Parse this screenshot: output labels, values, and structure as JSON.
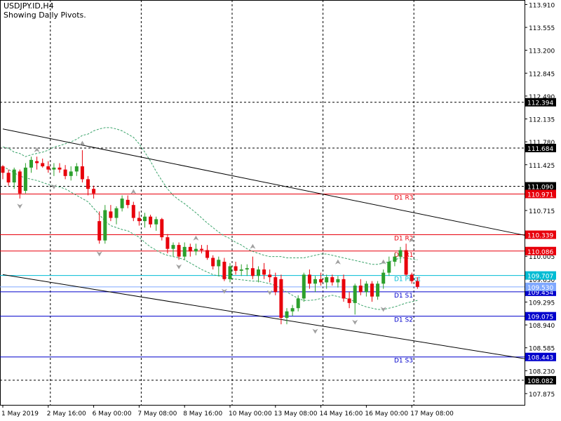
{
  "header": {
    "symbol": "USDJPY.ID,H4",
    "subtitle": "Showing Daily Pivots."
  },
  "colors": {
    "background": "#ffffff",
    "bull": "#2ca02c",
    "bear": "#e8000b",
    "resistance_line": "#e8000b",
    "support_line": "#0000cc",
    "pivot_line": "#00bcd4",
    "bid_line": "#7fa8ff",
    "envelope": "#3aa36a",
    "grid": "#000000",
    "fractal": "#a0a0a0",
    "trendline": "#000000"
  },
  "chart_data": {
    "type": "candlestick",
    "ylim": [
      107.7,
      113.98
    ],
    "yticks": [
      "113.910",
      "113.555",
      "113.200",
      "112.845",
      "112.490",
      "112.135",
      "111.780",
      "111.425",
      "111.070",
      "110.715",
      "110.360",
      "110.005",
      "109.650",
      "109.295",
      "108.940",
      "108.585",
      "108.230",
      "107.875"
    ],
    "xticks": [
      "1 May 2019",
      "2 May 16:00",
      "6 May 00:00",
      "7 May 08:00",
      "8 May 16:00",
      "10 May 00:00",
      "13 May 08:00",
      "14 May 16:00",
      "16 May 00:00",
      "17 May 08:00"
    ],
    "xtick_index": [
      0,
      8,
      16,
      24,
      32,
      40,
      48,
      56,
      64,
      72
    ],
    "grid_y": [
      112.394,
      111.684,
      111.09,
      108.082
    ],
    "pivots": [
      {
        "label": "D1 R3",
        "value": 110.971,
        "tag": "110.971",
        "kind": "resistance"
      },
      {
        "label": "D1 R2",
        "value": 110.339,
        "tag": "110.339",
        "kind": "resistance"
      },
      {
        "label": "D1 R1",
        "value": 110.086,
        "tag": "110.086",
        "kind": "resistance"
      },
      {
        "label": "D1 Pivot",
        "value": 109.707,
        "tag": "109.707",
        "kind": "pivot"
      },
      {
        "label": "D1 S1",
        "value": 109.454,
        "tag": "109.454",
        "kind": "support"
      },
      {
        "label": "D1 S2",
        "value": 109.075,
        "tag": "109.075",
        "kind": "support"
      },
      {
        "label": "D1 S3",
        "value": 108.443,
        "tag": "108.443",
        "kind": "support"
      }
    ],
    "price_tags_grid": [
      {
        "value": 112.394,
        "tag": "112.394"
      },
      {
        "value": 111.684,
        "tag": "111.684"
      },
      {
        "value": 111.09,
        "tag": "111.090"
      },
      {
        "value": 108.082,
        "tag": "108.082"
      }
    ],
    "bid": {
      "value": 109.53,
      "tag": "109.530"
    },
    "trendlines": [
      {
        "x1": 0,
        "y1": 111.98,
        "x2": 93,
        "y2": 110.31
      },
      {
        "x1": 0,
        "y1": 109.72,
        "x2": 93,
        "y2": 108.4
      }
    ],
    "candles": [
      [
        111.4,
        111.42,
        111.2,
        111.3
      ],
      [
        111.3,
        111.35,
        111.1,
        111.15
      ],
      [
        111.15,
        111.38,
        111.05,
        111.35
      ],
      [
        111.32,
        111.35,
        110.9,
        110.98
      ],
      [
        111.02,
        111.45,
        110.98,
        111.38
      ],
      [
        111.38,
        111.55,
        111.3,
        111.5
      ],
      [
        111.48,
        111.55,
        111.35,
        111.45
      ],
      [
        111.45,
        111.52,
        111.38,
        111.4
      ],
      [
        111.4,
        111.48,
        111.3,
        111.35
      ],
      [
        111.35,
        111.45,
        111.25,
        111.38
      ],
      [
        111.38,
        111.45,
        111.3,
        111.35
      ],
      [
        111.35,
        111.42,
        111.2,
        111.25
      ],
      [
        111.25,
        111.4,
        111.18,
        111.32
      ],
      [
        111.32,
        111.45,
        111.25,
        111.4
      ],
      [
        111.4,
        111.65,
        111.15,
        111.2
      ],
      [
        111.2,
        111.25,
        110.95,
        111.05
      ],
      [
        111.05,
        111.1,
        110.9,
        110.98
      ],
      [
        110.55,
        110.7,
        110.2,
        110.25
      ],
      [
        110.25,
        110.8,
        110.2,
        110.72
      ],
      [
        110.7,
        110.8,
        110.55,
        110.6
      ],
      [
        110.6,
        110.78,
        110.5,
        110.75
      ],
      [
        110.75,
        110.95,
        110.7,
        110.9
      ],
      [
        110.88,
        110.95,
        110.75,
        110.8
      ],
      [
        110.8,
        110.85,
        110.55,
        110.6
      ],
      [
        110.6,
        110.7,
        110.48,
        110.55
      ],
      [
        110.55,
        110.68,
        110.45,
        110.62
      ],
      [
        110.62,
        110.65,
        110.45,
        110.5
      ],
      [
        110.5,
        110.62,
        110.4,
        110.58
      ],
      [
        110.58,
        110.6,
        110.25,
        110.3
      ],
      [
        110.3,
        110.35,
        110.05,
        110.12
      ],
      [
        110.12,
        110.22,
        110.0,
        110.18
      ],
      [
        110.18,
        110.22,
        109.95,
        110.0
      ],
      [
        110.0,
        110.22,
        109.95,
        110.15
      ],
      [
        110.15,
        110.2,
        110.0,
        110.08
      ],
      [
        110.08,
        110.2,
        110.02,
        110.12
      ],
      [
        110.12,
        110.18,
        110.05,
        110.1
      ],
      [
        110.1,
        110.18,
        109.95,
        109.98
      ],
      [
        109.98,
        110.02,
        109.8,
        109.85
      ],
      [
        109.85,
        110.0,
        109.7,
        109.95
      ],
      [
        109.92,
        109.98,
        109.62,
        109.65
      ],
      [
        109.65,
        109.9,
        109.6,
        109.85
      ],
      [
        109.85,
        109.92,
        109.72,
        109.78
      ],
      [
        109.78,
        109.88,
        109.7,
        109.8
      ],
      [
        109.8,
        109.88,
        109.7,
        109.82
      ],
      [
        109.82,
        110.0,
        109.65,
        109.7
      ],
      [
        109.7,
        109.85,
        109.6,
        109.8
      ],
      [
        109.8,
        109.9,
        109.65,
        109.72
      ],
      [
        109.72,
        109.8,
        109.6,
        109.68
      ],
      [
        109.68,
        109.75,
        109.4,
        109.45
      ],
      [
        109.65,
        109.72,
        108.95,
        109.05
      ],
      [
        109.05,
        109.2,
        108.95,
        109.15
      ],
      [
        109.15,
        109.25,
        109.08,
        109.2
      ],
      [
        109.2,
        109.4,
        109.15,
        109.35
      ],
      [
        109.35,
        109.75,
        109.3,
        109.72
      ],
      [
        109.72,
        109.8,
        109.5,
        109.58
      ],
      [
        109.58,
        109.7,
        109.45,
        109.65
      ],
      [
        109.65,
        109.75,
        109.55,
        109.6
      ],
      [
        109.6,
        109.72,
        109.5,
        109.68
      ],
      [
        109.68,
        109.72,
        109.55,
        109.6
      ],
      [
        109.6,
        109.7,
        109.52,
        109.65
      ],
      [
        109.65,
        109.72,
        109.3,
        109.35
      ],
      [
        109.35,
        109.45,
        109.2,
        109.28
      ],
      [
        109.28,
        109.58,
        109.1,
        109.55
      ],
      [
        109.55,
        109.65,
        109.4,
        109.45
      ],
      [
        109.45,
        109.62,
        109.38,
        109.58
      ],
      [
        109.58,
        109.62,
        109.3,
        109.38
      ],
      [
        109.38,
        109.62,
        109.33,
        109.58
      ],
      [
        109.58,
        109.8,
        109.5,
        109.75
      ],
      [
        109.75,
        110.0,
        109.7,
        109.92
      ],
      [
        109.92,
        110.05,
        109.85,
        110.0
      ],
      [
        110.0,
        110.15,
        109.9,
        110.1
      ],
      [
        110.1,
        110.2,
        109.7,
        109.72
      ],
      [
        109.72,
        109.75,
        109.58,
        109.62
      ],
      [
        109.62,
        109.68,
        109.5,
        109.53
      ]
    ],
    "envelope_upper": [
      111.7,
      111.68,
      111.62,
      111.6,
      111.55,
      111.58,
      111.6,
      111.62,
      111.65,
      111.7,
      111.72,
      111.75,
      111.78,
      111.82,
      111.88,
      111.9,
      111.95,
      111.98,
      112.0,
      112.0,
      111.98,
      111.95,
      111.9,
      111.85,
      111.75,
      111.62,
      111.48,
      111.32,
      111.18,
      111.05,
      110.95,
      110.88,
      110.82,
      110.75,
      110.68,
      110.6,
      110.52,
      110.45,
      110.38,
      110.32,
      110.28,
      110.22,
      110.18,
      110.12,
      110.08,
      110.05,
      110.02,
      110.0,
      110.0,
      110.0,
      109.98,
      109.98,
      109.98,
      109.98,
      110.0,
      110.02,
      110.04,
      110.04,
      110.02,
      110.0,
      109.98,
      109.96,
      109.94,
      109.92,
      109.9,
      109.88,
      109.88,
      109.9,
      109.92,
      109.95,
      109.98,
      109.98,
      109.96,
      109.95
    ],
    "envelope_lower": [
      111.4,
      111.35,
      111.3,
      111.25,
      111.22,
      111.2,
      111.18,
      111.15,
      111.12,
      111.1,
      111.08,
      111.05,
      111.0,
      110.95,
      110.9,
      110.85,
      110.75,
      110.65,
      110.55,
      110.48,
      110.45,
      110.42,
      110.4,
      110.35,
      110.3,
      110.22,
      110.15,
      110.1,
      110.05,
      110.02,
      110.0,
      109.98,
      109.95,
      109.9,
      109.85,
      109.8,
      109.76,
      109.72,
      109.7,
      109.68,
      109.66,
      109.65,
      109.64,
      109.63,
      109.62,
      109.62,
      109.6,
      109.58,
      109.55,
      109.5,
      109.45,
      109.4,
      109.35,
      109.32,
      109.32,
      109.33,
      109.35,
      109.38,
      109.4,
      109.38,
      109.36,
      109.34,
      109.3,
      109.25,
      109.22,
      109.2,
      109.18,
      109.18,
      109.2,
      109.22,
      109.25,
      109.28,
      109.3,
      109.32
    ],
    "fractals_up": [
      [
        6,
        111.62
      ],
      [
        14,
        111.72
      ],
      [
        23,
        110.97
      ],
      [
        34,
        110.25
      ],
      [
        44,
        110.12
      ],
      [
        59,
        109.88
      ],
      [
        67,
        109.88
      ],
      [
        72,
        110.22
      ]
    ],
    "fractals_down": [
      [
        3,
        110.82
      ],
      [
        9,
        111.12
      ],
      [
        17,
        110.08
      ],
      [
        31,
        109.88
      ],
      [
        39,
        109.5
      ],
      [
        47,
        109.48
      ],
      [
        55,
        108.88
      ],
      [
        62,
        109.02
      ],
      [
        67,
        109.22
      ]
    ]
  }
}
